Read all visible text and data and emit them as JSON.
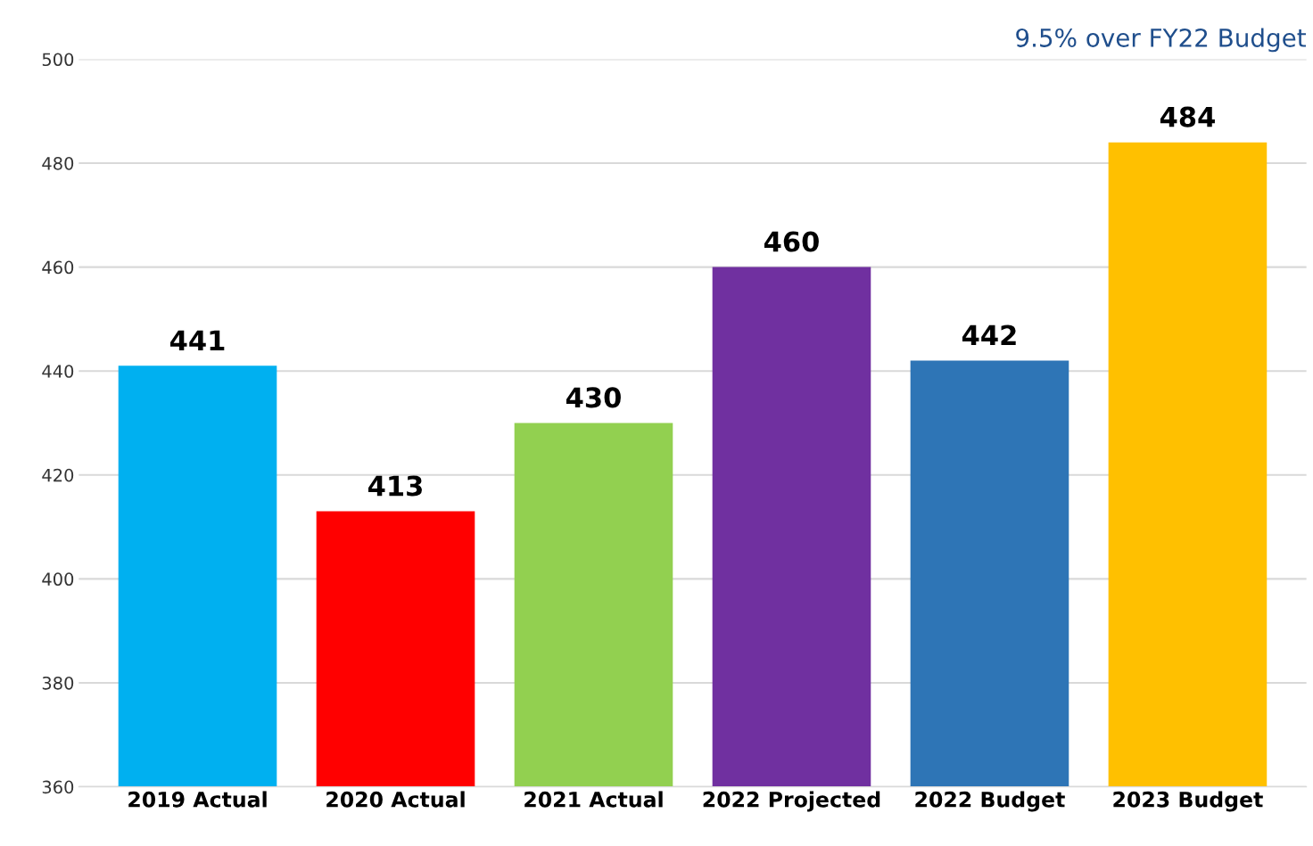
{
  "chart_data": {
    "type": "bar",
    "categories": [
      "2019 Actual",
      "2020 Actual",
      "2021 Actual",
      "2022 Projected",
      "2022 Budget",
      "2023 Budget"
    ],
    "values": [
      441,
      413,
      430,
      460,
      442,
      484
    ],
    "colors": [
      "#00b0f0",
      "#ff0000",
      "#92d050",
      "#7030a0",
      "#2e75b6",
      "#ffc000"
    ],
    "ylim": [
      360,
      500
    ],
    "yticks": [
      360,
      380,
      400,
      420,
      440,
      460,
      480,
      500
    ],
    "grid": "y",
    "data_labels": true,
    "annotations": [
      "9.5% over FY22 Budget"
    ]
  }
}
